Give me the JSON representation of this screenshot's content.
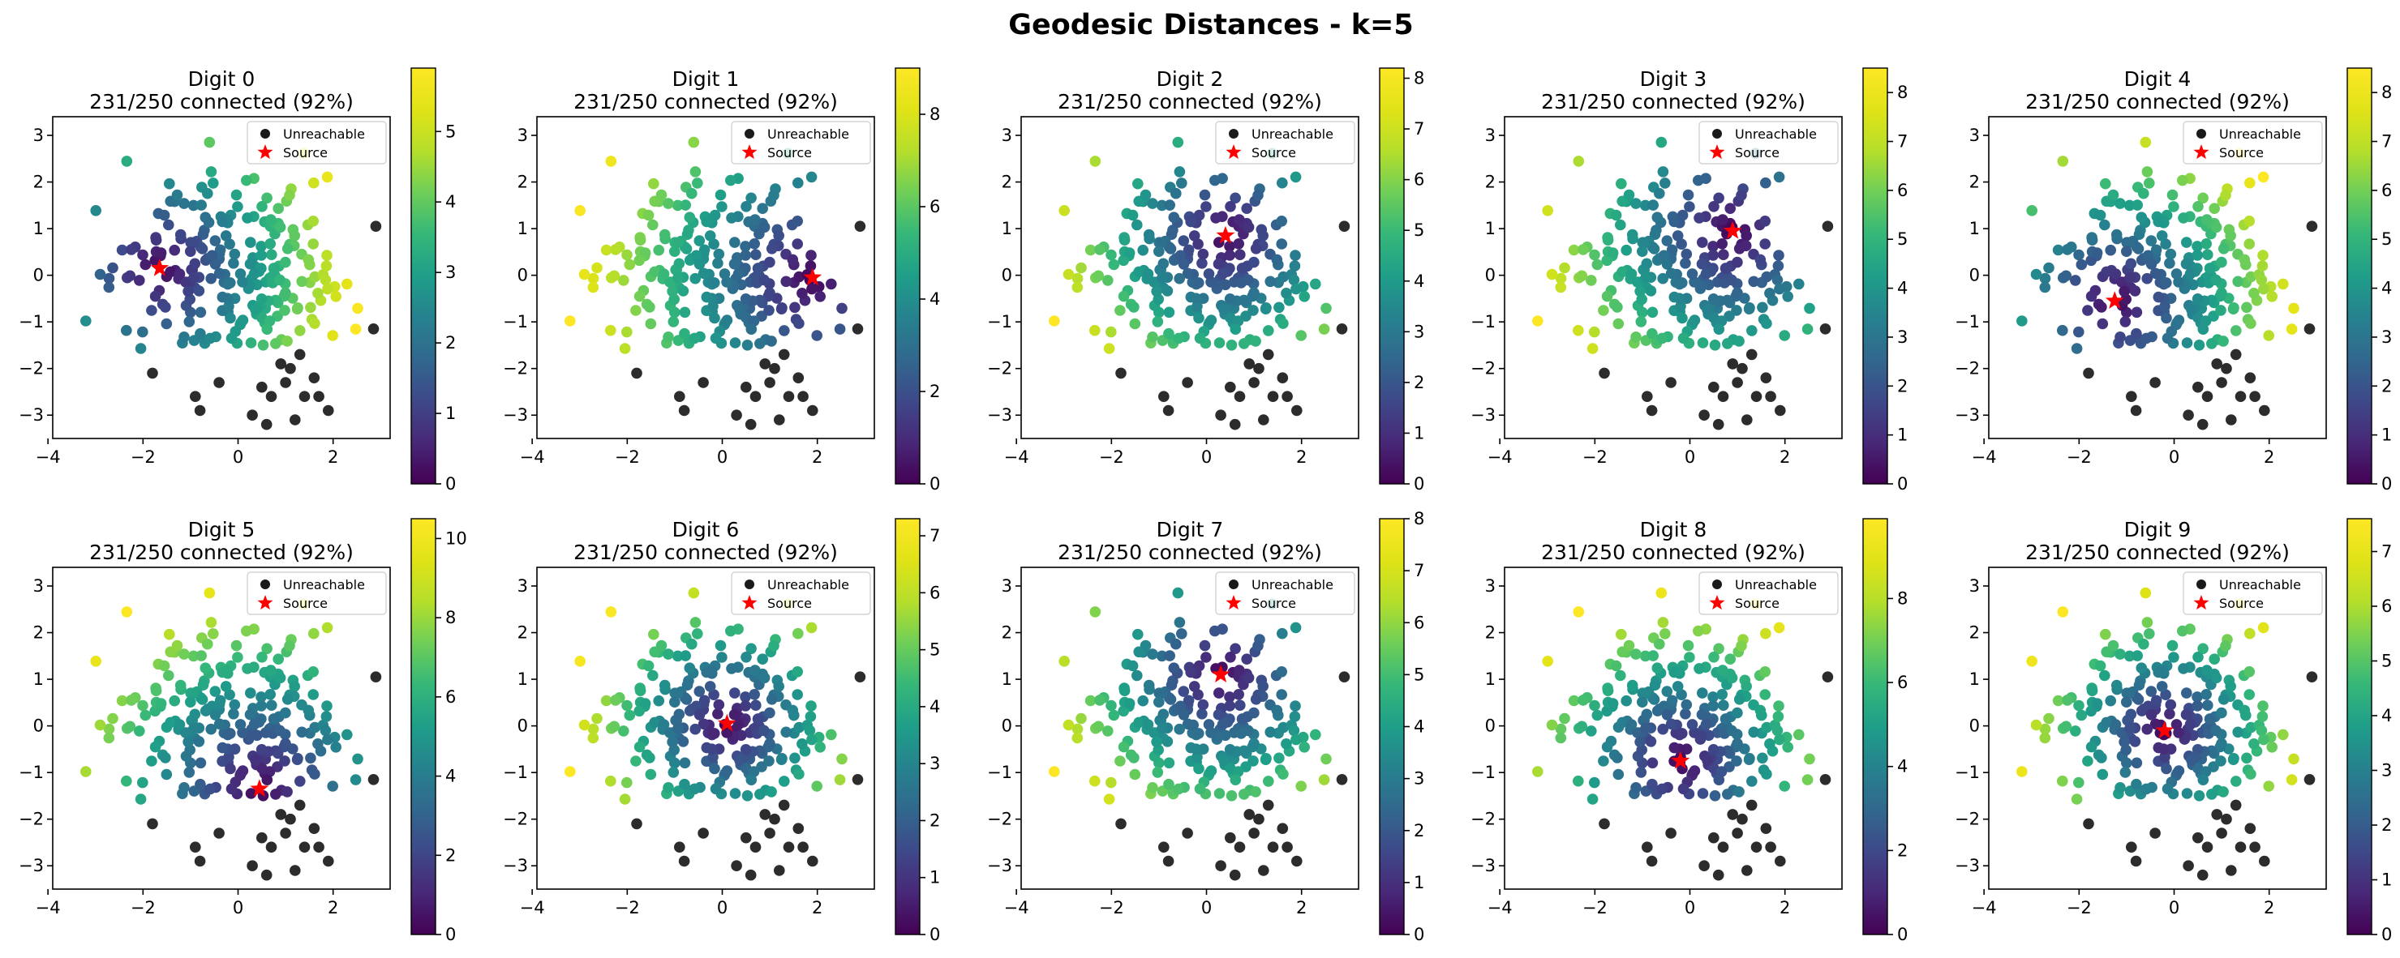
{
  "title": "Geodesic Distances - k=5",
  "colors": {
    "unreachable": "#1a1a1a",
    "source": "#ff0000",
    "colormap": "viridis"
  },
  "chart_data": [
    {
      "type": "scatter",
      "title": "Digit 0",
      "subtitle": "231/250 connected (92%)",
      "source": [
        -1.65,
        0.15
      ],
      "cbar_max": 5.9,
      "cbar_ticks": [
        0,
        1,
        2,
        3,
        4,
        5
      ],
      "xlim": [
        -3.9,
        3.2
      ],
      "ylim": [
        -3.5,
        3.4
      ],
      "xticks": [
        -4,
        -2,
        0,
        2
      ],
      "yticks": [
        -3,
        -2,
        -1,
        0,
        1,
        2,
        3
      ],
      "legend": [
        "Unreachable",
        "Source"
      ],
      "legend_loc": "upper right"
    },
    {
      "type": "scatter",
      "title": "Digit 1",
      "subtitle": "231/250 connected (92%)",
      "source": [
        1.9,
        -0.05
      ],
      "cbar_max": 9.0,
      "cbar_ticks": [
        0,
        2,
        4,
        6,
        8
      ],
      "xlim": [
        -3.9,
        3.2
      ],
      "ylim": [
        -3.5,
        3.4
      ],
      "xticks": [
        -4,
        -2,
        0,
        2
      ],
      "yticks": [
        -3,
        -2,
        -1,
        0,
        1,
        2,
        3
      ],
      "legend": [
        "Unreachable",
        "Source"
      ],
      "legend_loc": "upper right"
    },
    {
      "type": "scatter",
      "title": "Digit 2",
      "subtitle": "231/250 connected (92%)",
      "source": [
        0.4,
        0.85
      ],
      "cbar_max": 8.2,
      "cbar_ticks": [
        0,
        1,
        2,
        3,
        4,
        5,
        6,
        7,
        8
      ],
      "xlim": [
        -3.9,
        3.2
      ],
      "ylim": [
        -3.5,
        3.4
      ],
      "xticks": [
        -4,
        -2,
        0,
        2
      ],
      "yticks": [
        -3,
        -2,
        -1,
        0,
        1,
        2,
        3
      ],
      "legend": [
        "Unreachable",
        "Source"
      ],
      "legend_loc": "upper right"
    },
    {
      "type": "scatter",
      "title": "Digit 3",
      "subtitle": "231/250 connected (92%)",
      "source": [
        0.9,
        0.95
      ],
      "cbar_max": 8.5,
      "cbar_ticks": [
        0,
        1,
        2,
        3,
        4,
        5,
        6,
        7,
        8
      ],
      "xlim": [
        -3.9,
        3.2
      ],
      "ylim": [
        -3.5,
        3.4
      ],
      "xticks": [
        -4,
        -2,
        0,
        2
      ],
      "yticks": [
        -3,
        -2,
        -1,
        0,
        1,
        2,
        3
      ],
      "legend": [
        "Unreachable",
        "Source"
      ],
      "legend_loc": "upper right"
    },
    {
      "type": "scatter",
      "title": "Digit 4",
      "subtitle": "231/250 connected (92%)",
      "source": [
        -1.25,
        -0.55
      ],
      "cbar_max": 8.5,
      "cbar_ticks": [
        0,
        1,
        2,
        3,
        4,
        5,
        6,
        7,
        8
      ],
      "xlim": [
        -3.9,
        3.2
      ],
      "ylim": [
        -3.5,
        3.4
      ],
      "xticks": [
        -4,
        -2,
        0,
        2
      ],
      "yticks": [
        -3,
        -2,
        -1,
        0,
        1,
        2,
        3
      ],
      "legend": [
        "Unreachable",
        "Source"
      ],
      "legend_loc": "upper right"
    },
    {
      "type": "scatter",
      "title": "Digit 5",
      "subtitle": "231/250 connected (92%)",
      "source": [
        0.45,
        -1.35
      ],
      "cbar_max": 10.5,
      "cbar_ticks": [
        0,
        2,
        4,
        6,
        8,
        10
      ],
      "xlim": [
        -3.9,
        3.2
      ],
      "ylim": [
        -3.5,
        3.4
      ],
      "xticks": [
        -4,
        -2,
        0,
        2
      ],
      "yticks": [
        -3,
        -2,
        -1,
        0,
        1,
        2,
        3
      ],
      "legend": [
        "Unreachable",
        "Source"
      ],
      "legend_loc": "upper right"
    },
    {
      "type": "scatter",
      "title": "Digit 6",
      "subtitle": "231/250 connected (92%)",
      "source": [
        0.1,
        0.05
      ],
      "cbar_max": 7.3,
      "cbar_ticks": [
        0,
        1,
        2,
        3,
        4,
        5,
        6,
        7
      ],
      "xlim": [
        -3.9,
        3.2
      ],
      "ylim": [
        -3.5,
        3.4
      ],
      "xticks": [
        -4,
        -2,
        0,
        2
      ],
      "yticks": [
        -3,
        -2,
        -1,
        0,
        1,
        2,
        3
      ],
      "legend": [
        "Unreachable",
        "Source"
      ],
      "legend_loc": "upper right"
    },
    {
      "type": "scatter",
      "title": "Digit 7",
      "subtitle": "231/250 connected (92%)",
      "source": [
        0.3,
        1.1
      ],
      "cbar_max": 8.0,
      "cbar_ticks": [
        0,
        1,
        2,
        3,
        4,
        5,
        6,
        7,
        8
      ],
      "xlim": [
        -3.9,
        3.2
      ],
      "ylim": [
        -3.5,
        3.4
      ],
      "xticks": [
        -4,
        -2,
        0,
        2
      ],
      "yticks": [
        -3,
        -2,
        -1,
        0,
        1,
        2,
        3
      ],
      "legend": [
        "Unreachable",
        "Source"
      ],
      "legend_loc": "upper right"
    },
    {
      "type": "scatter",
      "title": "Digit 8",
      "subtitle": "231/250 connected (92%)",
      "source": [
        -0.2,
        -0.75
      ],
      "cbar_max": 9.9,
      "cbar_ticks": [
        0,
        2,
        4,
        6,
        8
      ],
      "xlim": [
        -3.9,
        3.2
      ],
      "ylim": [
        -3.5,
        3.4
      ],
      "xticks": [
        -4,
        -2,
        0,
        2
      ],
      "yticks": [
        -3,
        -2,
        -1,
        0,
        1,
        2,
        3
      ],
      "legend": [
        "Unreachable",
        "Source"
      ],
      "legend_loc": "upper right"
    },
    {
      "type": "scatter",
      "title": "Digit 9",
      "subtitle": "231/250 connected (92%)",
      "source": [
        -0.2,
        -0.1
      ],
      "cbar_max": 7.6,
      "cbar_ticks": [
        0,
        1,
        2,
        3,
        4,
        5,
        6,
        7
      ],
      "xlim": [
        -3.9,
        3.2
      ],
      "ylim": [
        -3.5,
        3.4
      ],
      "xticks": [
        -4,
        -2,
        0,
        2
      ],
      "yticks": [
        -3,
        -2,
        -1,
        0,
        1,
        2,
        3
      ],
      "legend": [
        "Unreachable",
        "Source"
      ],
      "legend_loc": "upper right"
    }
  ]
}
